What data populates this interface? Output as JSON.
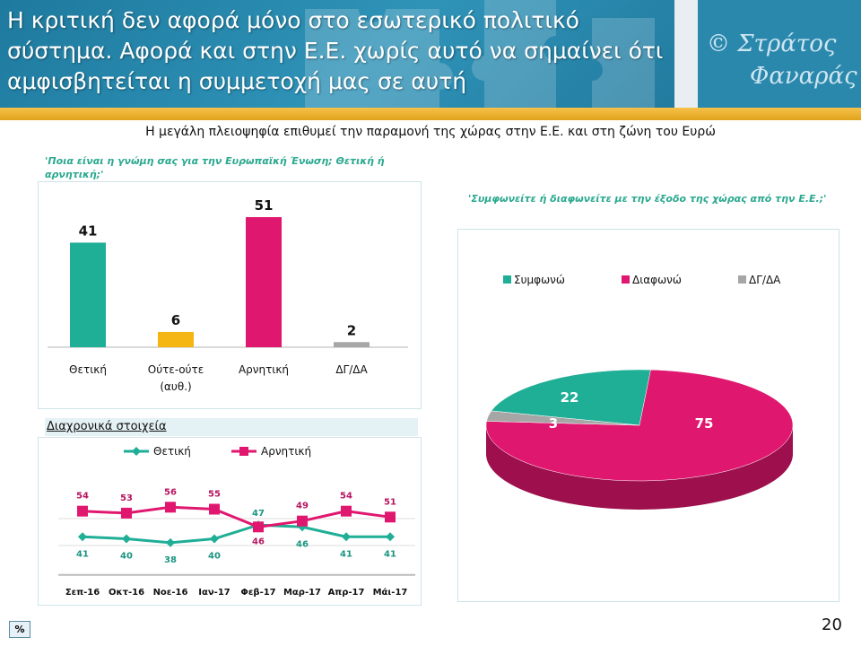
{
  "header": {
    "title": "Η κριτική δεν αφορά μόνο στο εσωτερικό πολιτικό σύστημα. Αφορά και στην Ε.Ε. χωρίς αυτό να σημαίνει ότι αμφισβητείται η συμμετοχή μας σε αυτή",
    "brand_line1": "© Στράτος",
    "brand_line2": "Φαναράς"
  },
  "subtitle": "Η μεγάλη πλειοψηφία επιθυμεί την παραμονή της χώρας στην Ε.Ε. και στη ζώνη του Ευρώ",
  "question1": "'Ποια είναι η γνώμη σας για την Ευρωπαϊκή Ένωση; Θετική ή αρνητική;'",
  "question2": "'Συμφωνείτε ή διαφωνείτε με την έξοδο της χώρας από την Ε.Ε.;'",
  "trend_label": "Διαχρονικά στοιχεία",
  "percent_label": "%",
  "page_number": "20",
  "colors": {
    "teal": "#1fae96",
    "magenta": "#e0176f",
    "orange": "#f5b614",
    "grey": "#a6a6a6"
  },
  "chart_data": [
    {
      "type": "bar",
      "categories": [
        "Θετική",
        "Ούτε-ούτε (αυθ.)",
        "Αρνητική",
        "ΔΓ/ΔΑ"
      ],
      "values": [
        41,
        6,
        51,
        2
      ],
      "colors": [
        "#1fae96",
        "#f5b614",
        "#e0176f",
        "#a6a6a6"
      ]
    },
    {
      "type": "pie",
      "labels": [
        "Συμφωνώ",
        "Διαφωνώ",
        "ΔΓ/ΔΑ"
      ],
      "values": [
        22,
        75,
        3
      ],
      "colors": [
        "#1fae96",
        "#e0176f",
        "#a6a6a6"
      ],
      "legend": "top"
    },
    {
      "type": "line",
      "categories": [
        "Σεπ-16",
        "Οκτ-16",
        "Νοε-16",
        "Ιαν-17",
        "Φεβ-17",
        "Μαρ-17",
        "Απρ-17",
        "Μάι-17"
      ],
      "series": [
        {
          "name": "Θετική",
          "values": [
            41,
            40,
            38,
            40,
            47,
            46,
            41,
            41
          ],
          "color": "#1fae96"
        },
        {
          "name": "Αρνητική",
          "values": [
            54,
            53,
            56,
            55,
            46,
            49,
            54,
            51
          ],
          "color": "#e0176f"
        }
      ],
      "legend": "top"
    }
  ]
}
